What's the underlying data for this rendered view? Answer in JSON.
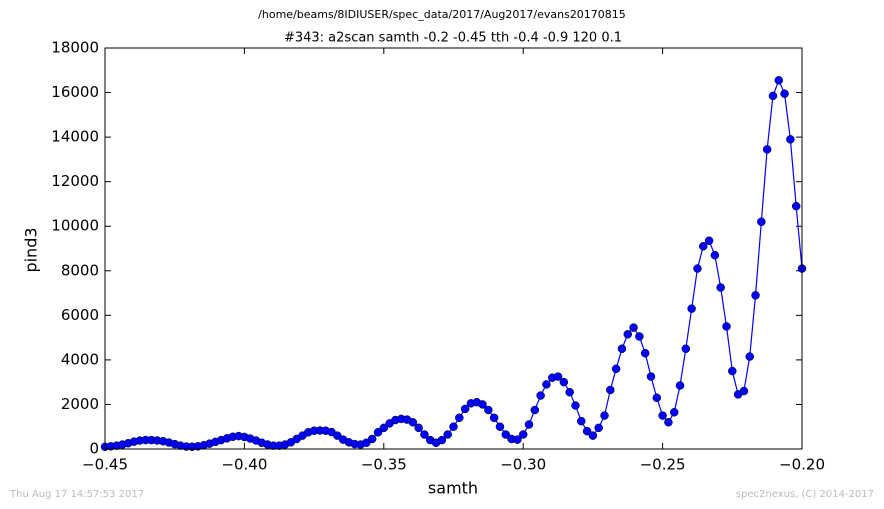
{
  "chart_data": {
    "type": "line",
    "suptitle": "/home/beams/8IDIUSER/spec_data/2017/Aug2017/evans20170815",
    "title": "#343: a2scan  samth -0.2 -0.45  tth -0.4 -0.9  120 0.1",
    "x_label": "samth",
    "y_label": "pind3",
    "timestamp": "Thu Aug 17 14:57:53 2017",
    "credit": "spec2nexus, (C) 2014-2017",
    "x": [
      -0.45,
      -0.44792,
      -0.44583,
      -0.44375,
      -0.44167,
      -0.43958,
      -0.4375,
      -0.43542,
      -0.43333,
      -0.43125,
      -0.42917,
      -0.42708,
      -0.425,
      -0.42292,
      -0.42083,
      -0.41875,
      -0.41667,
      -0.41458,
      -0.4125,
      -0.41042,
      -0.40833,
      -0.40625,
      -0.40417,
      -0.40208,
      -0.4,
      -0.39792,
      -0.39583,
      -0.39375,
      -0.39167,
      -0.38958,
      -0.3875,
      -0.38542,
      -0.38333,
      -0.38125,
      -0.37917,
      -0.37708,
      -0.375,
      -0.37292,
      -0.37083,
      -0.36875,
      -0.36667,
      -0.36458,
      -0.3625,
      -0.36042,
      -0.35833,
      -0.35625,
      -0.35417,
      -0.35208,
      -0.35,
      -0.34792,
      -0.34583,
      -0.34375,
      -0.34167,
      -0.33958,
      -0.3375,
      -0.33542,
      -0.33333,
      -0.33125,
      -0.32917,
      -0.32708,
      -0.325,
      -0.32292,
      -0.32083,
      -0.31875,
      -0.31667,
      -0.31458,
      -0.3125,
      -0.31042,
      -0.30833,
      -0.30625,
      -0.30417,
      -0.30208,
      -0.3,
      -0.29792,
      -0.29583,
      -0.29375,
      -0.29167,
      -0.28958,
      -0.2875,
      -0.28542,
      -0.28333,
      -0.28125,
      -0.27917,
      -0.27708,
      -0.275,
      -0.27292,
      -0.27083,
      -0.26875,
      -0.26667,
      -0.26458,
      -0.2625,
      -0.26042,
      -0.25833,
      -0.25625,
      -0.25417,
      -0.25208,
      -0.25,
      -0.24792,
      -0.24583,
      -0.24375,
      -0.24167,
      -0.23958,
      -0.2375,
      -0.23542,
      -0.23333,
      -0.23125,
      -0.22917,
      -0.22708,
      -0.225,
      -0.22292,
      -0.22083,
      -0.21875,
      -0.21667,
      -0.21458,
      -0.2125,
      -0.21042,
      -0.20833,
      -0.20625,
      -0.20417,
      -0.20208,
      -0.2
    ],
    "series": [
      {
        "name": "pind3",
        "color": "#0000ff",
        "values": [
          100,
          120,
          150,
          200,
          260,
          330,
          380,
          400,
          400,
          380,
          350,
          290,
          220,
          150,
          110,
          100,
          120,
          170,
          240,
          320,
          400,
          480,
          550,
          580,
          540,
          470,
          380,
          280,
          200,
          150,
          150,
          200,
          300,
          450,
          600,
          750,
          820,
          830,
          820,
          760,
          600,
          420,
          300,
          220,
          200,
          280,
          450,
          750,
          950,
          1150,
          1300,
          1350,
          1320,
          1200,
          950,
          650,
          400,
          280,
          400,
          650,
          1000,
          1400,
          1800,
          2050,
          2100,
          2000,
          1750,
          1400,
          1000,
          650,
          450,
          420,
          650,
          1100,
          1750,
          2400,
          2900,
          3200,
          3250,
          3000,
          2550,
          1950,
          1250,
          800,
          600,
          950,
          1500,
          2650,
          3600,
          4500,
          5150,
          5450,
          5050,
          4300,
          3250,
          2300,
          1500,
          1200,
          1650,
          2850,
          4500,
          6300,
          8100,
          9100,
          9350,
          8700,
          7250,
          5500,
          3500,
          2450,
          2600,
          4150,
          6900,
          10200,
          13450,
          15850,
          16550,
          15950,
          13900,
          10900,
          8100
        ]
      }
    ],
    "xlim": [
      -0.45,
      -0.2
    ],
    "xticks": [
      {
        "value": -0.45,
        "label": "−0.45"
      },
      {
        "value": -0.4,
        "label": "−0.40"
      },
      {
        "value": -0.35,
        "label": "−0.35"
      },
      {
        "value": -0.3,
        "label": "−0.30"
      },
      {
        "value": -0.25,
        "label": "−0.25"
      },
      {
        "value": -0.2,
        "label": "−0.20"
      }
    ],
    "ylim": [
      0,
      18000
    ],
    "yticks": [
      0,
      2000,
      4000,
      6000,
      8000,
      10000,
      12000,
      14000,
      16000,
      18000
    ],
    "grid": false
  }
}
